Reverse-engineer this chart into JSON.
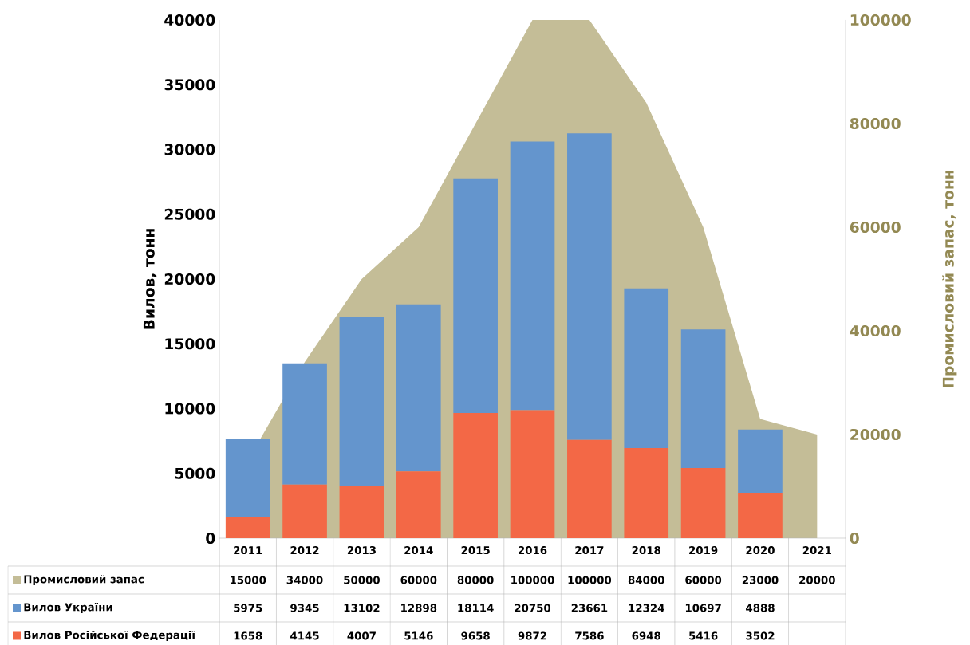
{
  "chart_data": {
    "type": "bar",
    "stacked": true,
    "ylabel": "Вилов, тонн",
    "y2label": "Промисловий  запас, тонн",
    "categories": [
      "2011",
      "2012",
      "2013",
      "2014",
      "2015",
      "2016",
      "2017",
      "2018",
      "2019",
      "2020",
      "2021"
    ],
    "series": [
      {
        "name": "Промисловий запас",
        "type": "area",
        "axis": "y2",
        "color": "#c4bd97",
        "values": [
          15000,
          34000,
          50000,
          60000,
          80000,
          100000,
          100000,
          84000,
          60000,
          23000,
          20000
        ]
      },
      {
        "name": "Вилов Російської Федерації",
        "color": "#f36846",
        "values": [
          1658,
          4145,
          4007,
          5146,
          9658,
          9872,
          7586,
          6948,
          5416,
          3502,
          null
        ]
      },
      {
        "name": "Вилов України",
        "color": "#6495cd",
        "values": [
          5975,
          9345,
          13102,
          12898,
          18114,
          20750,
          23661,
          12324,
          10697,
          4888,
          null
        ]
      }
    ],
    "ylim": [
      0,
      40000
    ],
    "yticks": [
      0,
      5000,
      10000,
      15000,
      20000,
      25000,
      30000,
      35000,
      40000
    ],
    "y2lim": [
      0,
      100000
    ],
    "y2ticks": [
      0,
      20000,
      40000,
      60000,
      80000,
      100000
    ],
    "data_labels": true,
    "legend": "bottom",
    "grid": false
  }
}
